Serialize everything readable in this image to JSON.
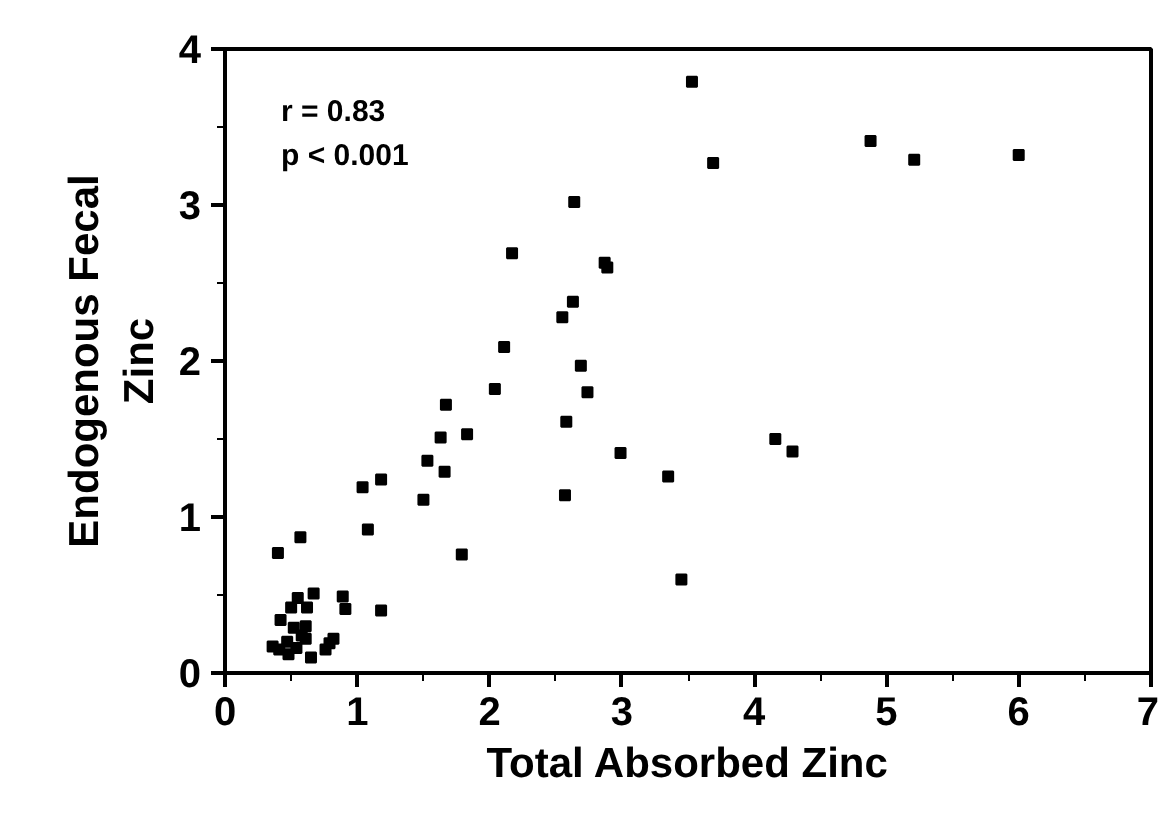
{
  "chart_data": {
    "type": "scatter",
    "xlabel": "Total Absorbed Zinc",
    "ylabel": "Endogenous Fecal\nZinc",
    "annotations": [
      "r = 0.83",
      "p < 0.001"
    ],
    "series": [
      {
        "color": "#000000",
        "x": [
          2.69,
          2.74,
          2.04,
          1.67,
          2.58,
          1.63,
          1.83,
          1.53,
          1.66,
          2.99,
          3.35,
          2.57,
          1.5,
          1.04,
          1.18,
          1.08,
          1.79,
          0.4,
          0.57,
          1.18,
          0.89,
          0.91,
          0.67,
          0.55,
          0.5,
          0.62,
          0.42,
          0.52,
          0.61,
          0.58,
          0.61,
          0.82,
          0.79,
          0.76,
          0.36,
          0.41,
          0.47,
          0.54,
          0.48,
          0.65,
          3.45,
          4.16,
          4.29,
          2.64,
          2.17,
          2.87,
          2.89,
          2.63,
          2.55,
          2.11,
          3.53,
          3.69,
          4.88,
          5.21,
          6.0
        ],
        "values": [
          1.97,
          1.8,
          1.82,
          1.72,
          1.61,
          1.51,
          1.53,
          1.36,
          1.29,
          1.41,
          1.26,
          1.14,
          1.11,
          1.19,
          1.24,
          0.92,
          0.76,
          0.77,
          0.87,
          0.4,
          0.49,
          0.41,
          0.51,
          0.48,
          0.42,
          0.42,
          0.34,
          0.29,
          0.3,
          0.24,
          0.22,
          0.22,
          0.19,
          0.15,
          0.17,
          0.15,
          0.2,
          0.16,
          0.12,
          0.1,
          0.6,
          1.5,
          1.42,
          3.02,
          2.69,
          2.63,
          2.6,
          2.38,
          2.28,
          2.09,
          3.79,
          3.27,
          3.41,
          3.29,
          3.32
        ]
      }
    ],
    "marker": "square",
    "grid": false,
    "xlim": [
      0,
      7
    ],
    "ylim": [
      0,
      4
    ],
    "xticks": [
      0,
      {
        "value": 0.5,
        "label": null
      },
      1,
      {
        "value": 1.5,
        "label": null
      },
      2,
      {
        "value": 2.5,
        "label": null
      },
      3,
      {
        "value": 3.5,
        "label": null
      },
      4,
      {
        "value": 4.5,
        "label": null
      },
      5,
      {
        "value": 5.5,
        "label": null
      },
      6,
      {
        "value": 6.5,
        "label": null
      },
      7
    ],
    "yticks": [
      0,
      {
        "value": 0.5,
        "label": null
      },
      1,
      {
        "value": 1.5,
        "label": null
      },
      2,
      {
        "value": 2.5,
        "label": null
      },
      3,
      {
        "value": 3.5,
        "label": null
      },
      4
    ]
  }
}
